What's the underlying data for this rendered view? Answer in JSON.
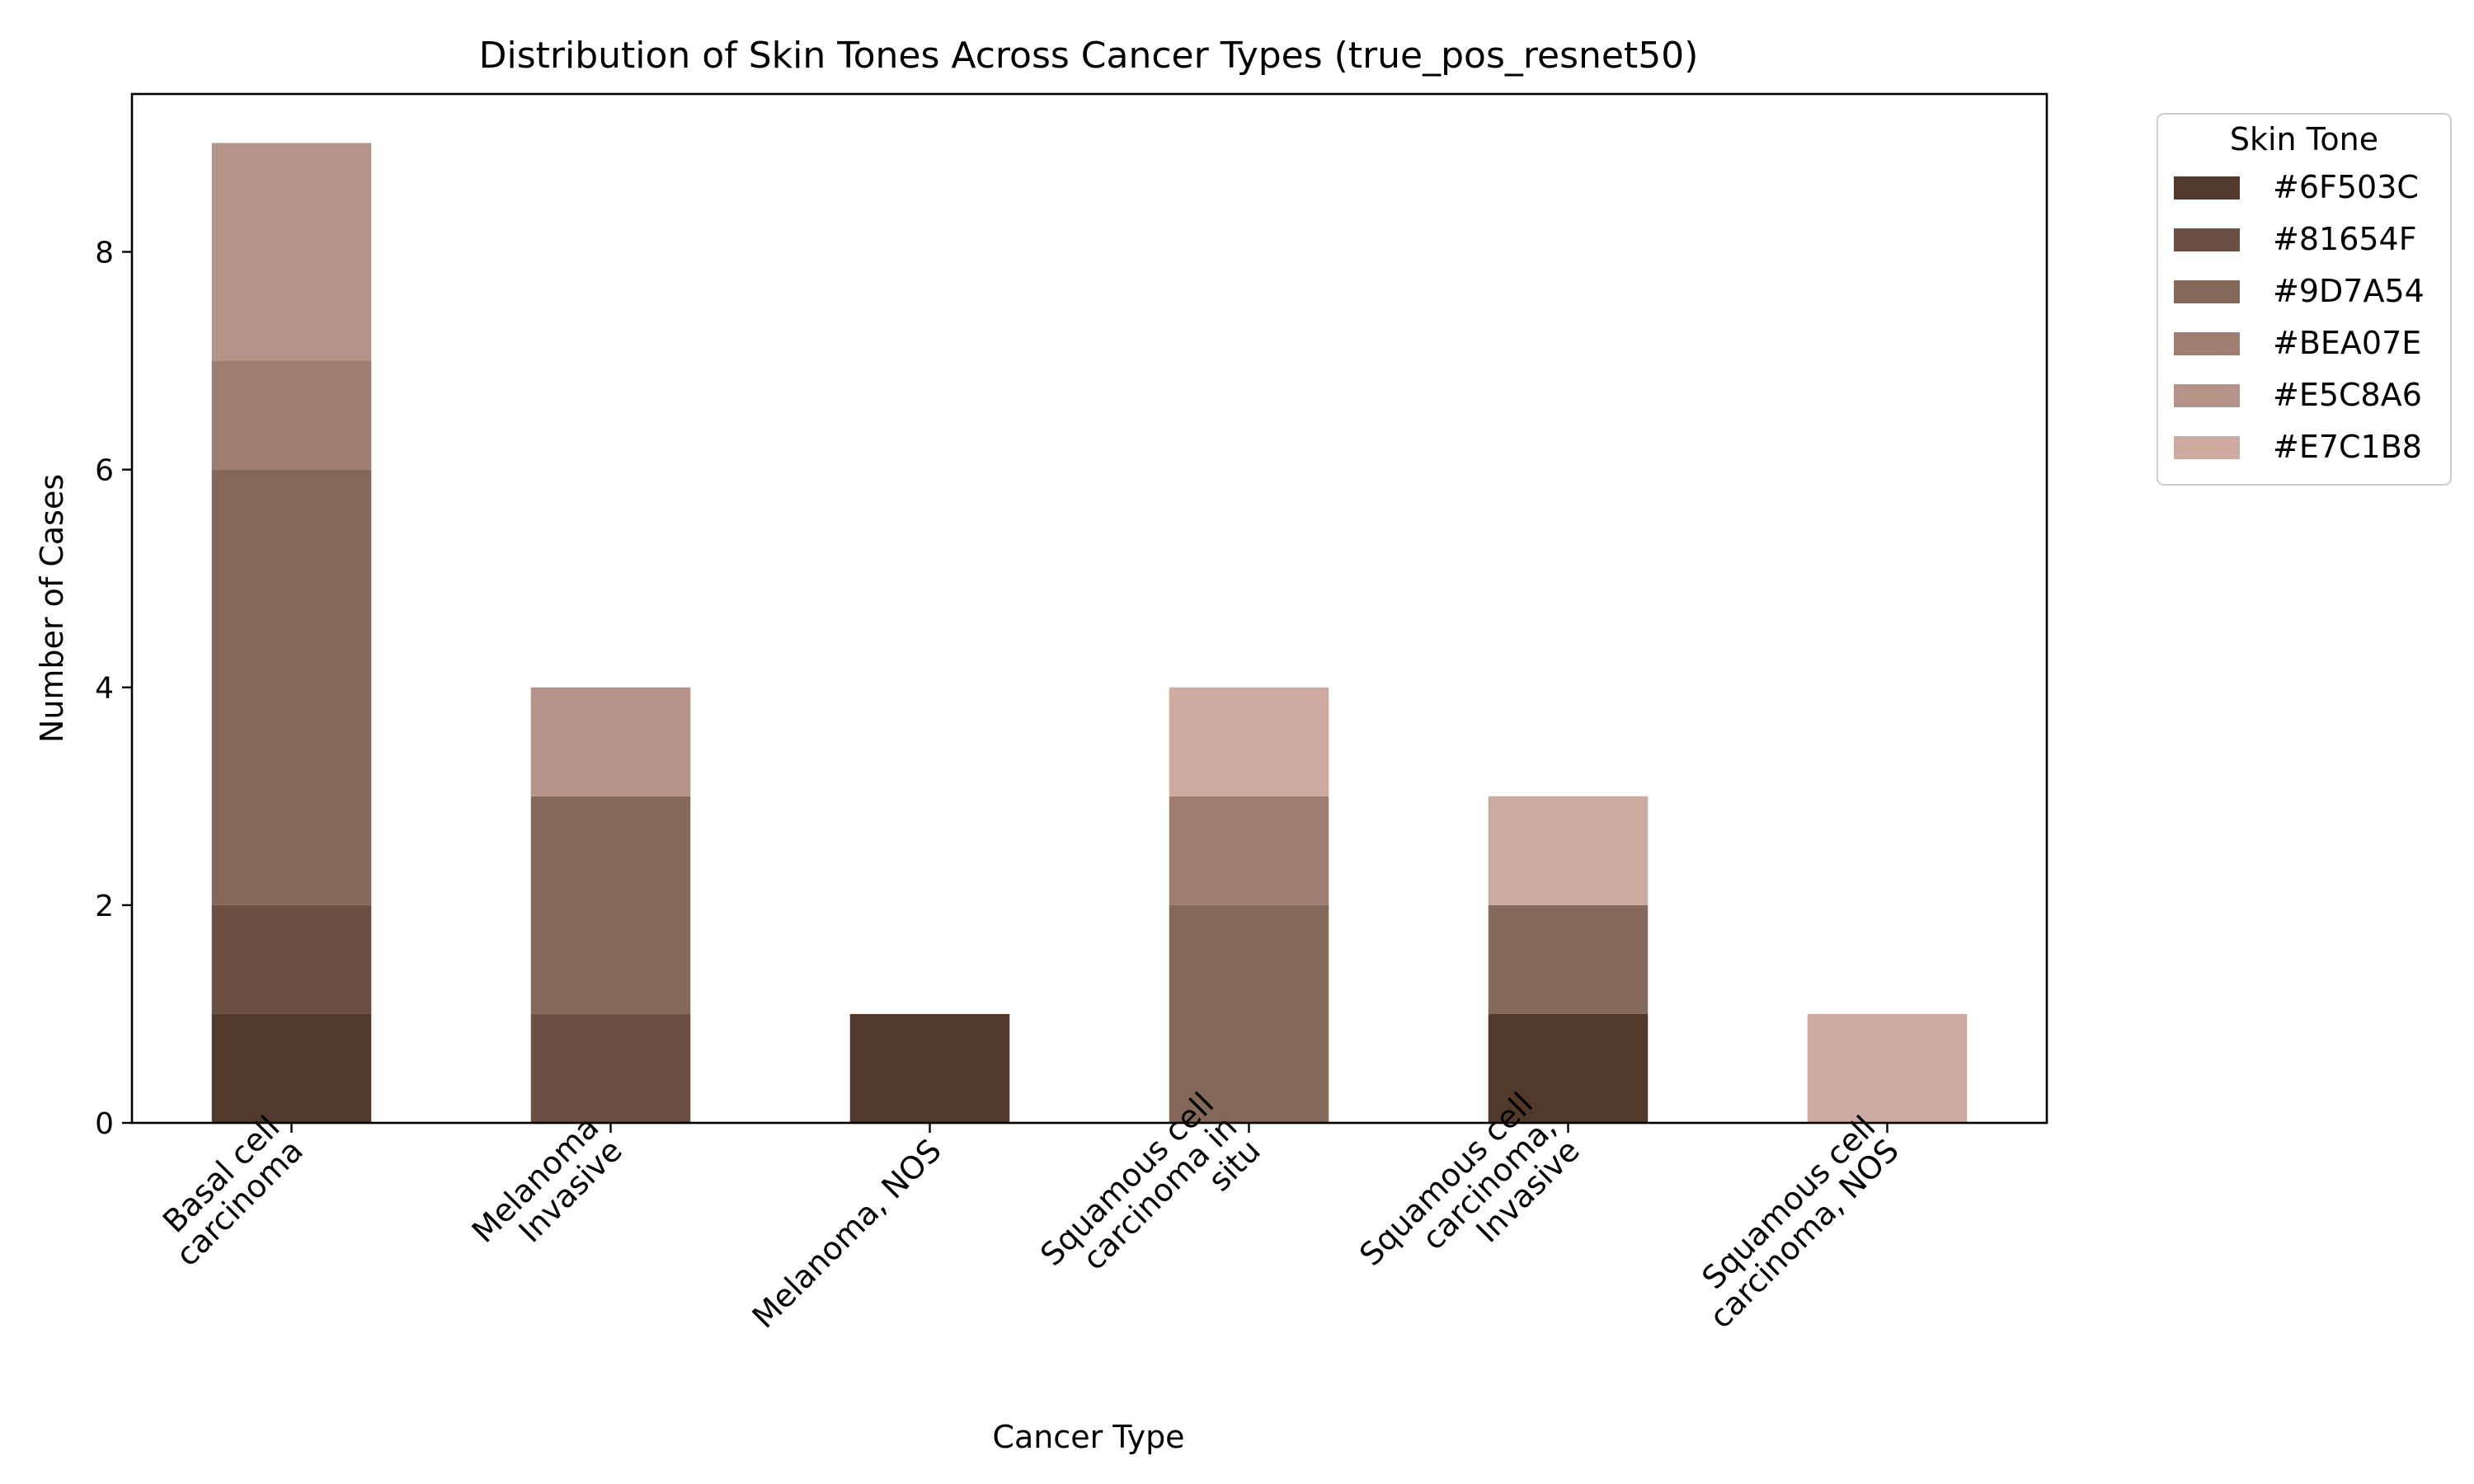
{
  "chart_data": {
    "type": "bar",
    "stacked": true,
    "title": "Distribution of Skin Tones Across Cancer Types (true_pos_resnet50)",
    "xlabel": "Cancer Type",
    "ylabel": "Number of Cases",
    "ylim": [
      0,
      9.45
    ],
    "yticks": [
      0,
      2,
      4,
      6,
      8
    ],
    "grid": false,
    "legend": {
      "title": "Skin Tone",
      "placement": "outside-top-right"
    },
    "categories": [
      [
        "Basal cell",
        "carcinoma"
      ],
      [
        "Melanoma",
        "Invasive"
      ],
      [
        "Melanoma, NOS"
      ],
      [
        "Squamous cell",
        "carcinoma in",
        "situ"
      ],
      [
        "Squamous cell",
        "carcinoma,",
        "Invasive"
      ],
      [
        "Squamous cell",
        "carcinoma, NOS"
      ]
    ],
    "series": [
      {
        "name": "#6F503C",
        "color": "#513a2c",
        "values": [
          1,
          0,
          1,
          0,
          1,
          0
        ]
      },
      {
        "name": "#81654F",
        "color": "#6a4f42",
        "values": [
          1,
          1,
          0,
          0,
          0,
          0
        ]
      },
      {
        "name": "#9D7A54",
        "color": "#84695b",
        "values": [
          4,
          2,
          0,
          2,
          1,
          0
        ]
      },
      {
        "name": "#BEA07E",
        "color": "#9e7e71",
        "values": [
          1,
          0,
          0,
          1,
          0,
          0
        ]
      },
      {
        "name": "#E5C8A6",
        "color": "#b49488",
        "values": [
          2,
          1,
          0,
          0,
          0,
          0
        ]
      },
      {
        "name": "#E7C1B8",
        "color": "#cdaaa0",
        "values": [
          0,
          0,
          0,
          1,
          1,
          1
        ]
      }
    ]
  }
}
